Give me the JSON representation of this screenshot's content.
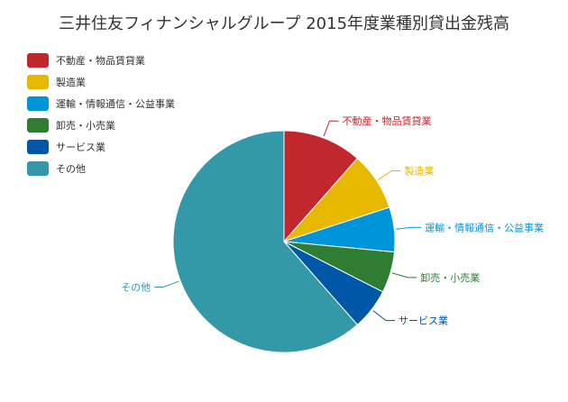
{
  "chart_data": {
    "type": "pie",
    "title": "三井住友フィナンシャルグループ 2015年度業種別貸出金残高",
    "legend_position": "top-left",
    "slices": [
      {
        "label": "不動産・物品賃貸業",
        "value": 11.5,
        "color": "#c1272d"
      },
      {
        "label": "製造業",
        "value": 8.5,
        "color": "#e6b800"
      },
      {
        "label": "運輸・情報通信・公益事業",
        "value": 6.5,
        "color": "#0095d9"
      },
      {
        "label": "卸売・小売業",
        "value": 6.0,
        "color": "#2e7d32"
      },
      {
        "label": "サービス業",
        "value": 6.0,
        "color": "#0057a8"
      },
      {
        "label": "その他",
        "value": 61.5,
        "color": "#3398a8"
      }
    ]
  }
}
